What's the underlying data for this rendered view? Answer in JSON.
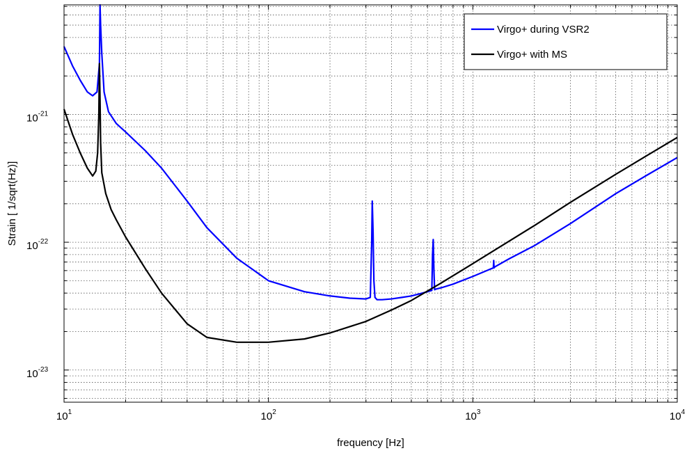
{
  "chart_data": {
    "type": "line",
    "title": "",
    "xlabel": "frequency [Hz]",
    "ylabel": "Strain [ 1/sqrt(Hz)]",
    "x_scale": "log",
    "y_scale": "log",
    "xlim": [
      10,
      10000
    ],
    "ylim": [
      5.6e-24,
      7.2e-21
    ],
    "x_ticks": [
      {
        "value": 10,
        "base": "10",
        "exp": "1"
      },
      {
        "value": 100,
        "base": "10",
        "exp": "2"
      },
      {
        "value": 1000,
        "base": "10",
        "exp": "3"
      },
      {
        "value": 10000,
        "base": "10",
        "exp": "4"
      }
    ],
    "y_ticks": [
      {
        "value": 1e-21,
        "base": "10",
        "exp": "-21"
      },
      {
        "value": 1e-22,
        "base": "10",
        "exp": "-22"
      },
      {
        "value": 1e-23,
        "base": "10",
        "exp": "-23"
      }
    ],
    "grid": true,
    "legend_position": "top-right",
    "series": [
      {
        "name": "Virgo+ during VSR2",
        "color": "#0000ff",
        "x": [
          10,
          11,
          12,
          13,
          13.8,
          14.5,
          14.9,
          15.0,
          15.1,
          15.3,
          15.7,
          16.5,
          18,
          20,
          25,
          30,
          40,
          50,
          70,
          100,
          150,
          200,
          250,
          300,
          315,
          320,
          322,
          325,
          328,
          332,
          340,
          360,
          400,
          450,
          500,
          550,
          600,
          630,
          635,
          640,
          645,
          650,
          660,
          700,
          800,
          1000,
          1200,
          1260,
          1265,
          1270,
          1280,
          1300,
          1500,
          2000,
          3000,
          5000,
          7000,
          10000
        ],
        "y": [
          3.4e-21,
          2.4e-21,
          1.85e-21,
          1.5e-21,
          1.4e-21,
          1.5e-21,
          2.5e-21,
          7.2e-21,
          5e-21,
          3e-21,
          1.5e-21,
          1.05e-21,
          8.5e-22,
          7.3e-22,
          5.2e-22,
          3.8e-22,
          2.1e-22,
          1.3e-22,
          7.5e-23,
          5e-23,
          4.1e-23,
          3.8e-23,
          3.65e-23,
          3.6e-23,
          3.7e-23,
          1e-22,
          2.1e-22,
          1.2e-22,
          5e-23,
          3.7e-23,
          3.55e-23,
          3.55e-23,
          3.6e-23,
          3.7e-23,
          3.8e-23,
          3.95e-23,
          4.1e-23,
          4.2e-23,
          8e-23,
          1.05e-22,
          6e-23,
          4.25e-23,
          4.3e-23,
          4.4e-23,
          4.7e-23,
          5.4e-23,
          6.1e-23,
          6.3e-23,
          7.2e-23,
          6.3e-23,
          6.4e-23,
          6.5e-23,
          7.4e-23,
          9.4e-23,
          1.4e-22,
          2.4e-22,
          3.3e-22,
          4.6e-22
        ]
      },
      {
        "name": "Virgo+ with MS",
        "color": "#000000",
        "x": [
          10,
          11,
          12,
          13,
          13.8,
          14.3,
          14.6,
          14.8,
          14.9,
          15.0,
          15.1,
          15.3,
          16,
          17,
          18,
          20,
          25,
          30,
          40,
          50,
          70,
          100,
          150,
          200,
          300,
          400,
          500,
          700,
          1000,
          2000,
          3000,
          5000,
          7000,
          10000
        ],
        "y": [
          1.1e-21,
          7e-22,
          5e-22,
          3.8e-22,
          3.3e-22,
          3.6e-22,
          5e-22,
          1e-21,
          2.5e-21,
          1.3e-21,
          6e-22,
          3.5e-22,
          2.4e-22,
          1.8e-22,
          1.5e-22,
          1.1e-22,
          6.2e-23,
          4e-23,
          2.3e-23,
          1.8e-23,
          1.65e-23,
          1.65e-23,
          1.75e-23,
          1.95e-23,
          2.4e-23,
          2.95e-23,
          3.5e-23,
          4.8e-23,
          6.8e-23,
          1.35e-22,
          2.05e-22,
          3.4e-22,
          4.7e-22,
          6.6e-22
        ]
      }
    ]
  }
}
